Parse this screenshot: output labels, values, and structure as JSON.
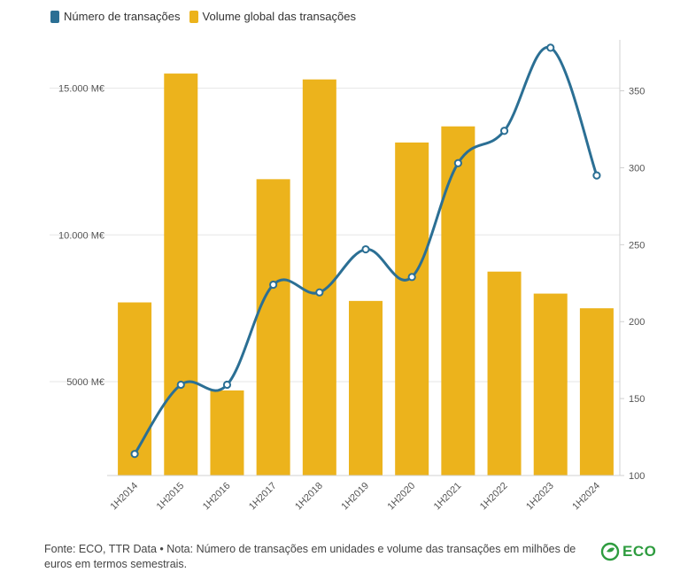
{
  "legend": {
    "line_label": "Número de transações",
    "bar_label": "Volume global das transações"
  },
  "colors": {
    "bar": "#ecb31c",
    "line": "#2b6f94",
    "grid": "#e6e6e6"
  },
  "chart_data": {
    "type": "bar",
    "categories": [
      "1H2014",
      "1H2015",
      "1H2016",
      "1H2017",
      "1H2018",
      "1H2019",
      "1H2020",
      "1H2021",
      "1H2022",
      "1H2023",
      "1H2024"
    ],
    "series": [
      {
        "name": "Volume global das transações",
        "type": "bar",
        "axis": "left",
        "values": [
          7700,
          15500,
          4700,
          11900,
          15300,
          7750,
          13150,
          13700,
          8750,
          8000,
          7500
        ]
      },
      {
        "name": "Número de transações",
        "type": "line",
        "axis": "right",
        "values": [
          114,
          159,
          159,
          224,
          219,
          247,
          229,
          303,
          324,
          378,
          295
        ]
      }
    ],
    "y_left": {
      "ticks": [
        5000,
        10000,
        15000
      ],
      "tick_labels": [
        "5000 M€",
        "10.000 M€",
        "15.000 M€"
      ],
      "range": [
        1800,
        16800
      ]
    },
    "y_right": {
      "ticks": [
        100,
        150,
        200,
        250,
        300,
        350
      ],
      "range": [
        100,
        386
      ]
    },
    "grid": true,
    "legend_position": "top-left"
  },
  "footer": {
    "note": "Fonte: ECO, TTR Data • Nota: Número de transações em unidades e volume das transações em milhões de euros em termos semestrais."
  },
  "logo": {
    "text": "ECO"
  }
}
